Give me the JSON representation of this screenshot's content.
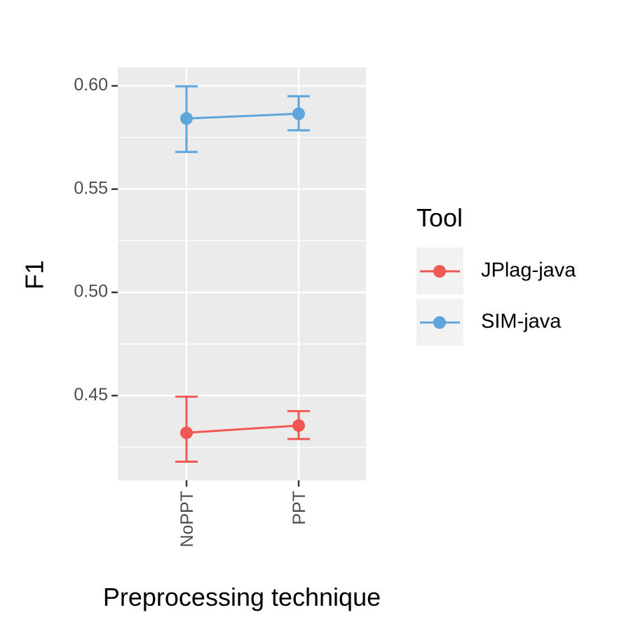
{
  "chart_data": {
    "type": "line",
    "title": "",
    "xlabel": "Preprocessing technique",
    "ylabel": "F1",
    "categories": [
      "NoPPT",
      "PPT"
    ],
    "ylim": [
      0.409,
      0.609
    ],
    "yticks": [
      0.45,
      0.5,
      0.55,
      0.6
    ],
    "ytick_labels": [
      "0.45",
      "0.50",
      "0.55",
      "0.60"
    ],
    "grid": true,
    "legend": {
      "title": "Tool",
      "position": "right"
    },
    "series": [
      {
        "name": "JPlag-java",
        "color": "#F15854",
        "values": [
          0.432,
          0.4355
        ],
        "error_low": [
          0.418,
          0.429
        ],
        "error_high": [
          0.4495,
          0.4425
        ]
      },
      {
        "name": "SIM-java",
        "color": "#5DA5DA",
        "values": [
          0.5842,
          0.5865
        ],
        "error_low": [
          0.568,
          0.5785
        ],
        "error_high": [
          0.5998,
          0.595
        ]
      }
    ]
  }
}
